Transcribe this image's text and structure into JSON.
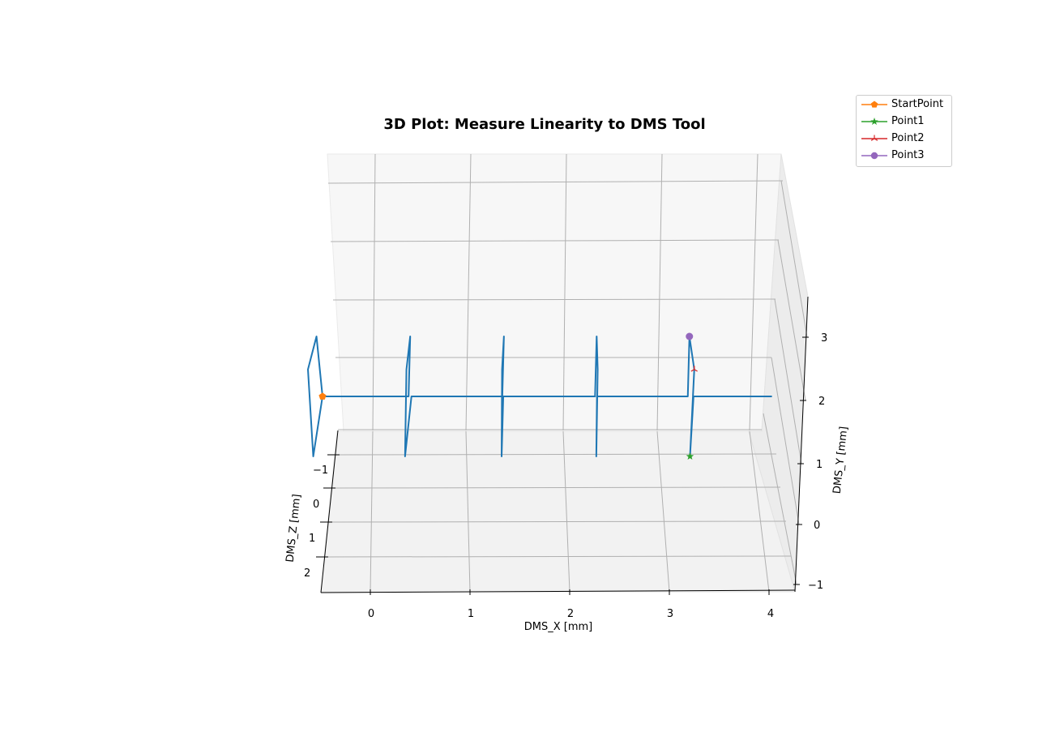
{
  "chart_data": {
    "type": "line",
    "projection": "3d",
    "title": "3D Plot: Measure Linearity to DMS Tool",
    "xlabel": "DMS_X [mm]",
    "ylabel": "DMS_Y [mm]",
    "zlabel": "DMS_Z [mm]",
    "xlim": [
      -0.5,
      4.25
    ],
    "ylim": [
      -1.2,
      3.3
    ],
    "zlim": [
      -1.5,
      2.5
    ],
    "x_ticks": [
      "0",
      "1",
      "2",
      "3",
      "4"
    ],
    "y_ticks": [
      "−1",
      "0",
      "1",
      "2",
      "3"
    ],
    "z_ticks": [
      "−1",
      "0",
      "1",
      "2"
    ],
    "grid": true,
    "legend_position": "upper-right-outside",
    "series": [
      {
        "color": "#1f77b4",
        "marker": "none",
        "points": [
          [
            -0.5,
            2.0,
            -1.0
          ],
          [
            -0.58,
            3.0,
            -1.0
          ],
          [
            -0.66,
            2.45,
            -1.0
          ],
          [
            -0.58,
            1.0,
            -1.0
          ],
          [
            -0.5,
            2.0,
            -1.0
          ],
          [
            0.4,
            2.0,
            -1.0
          ],
          [
            0.4,
            3.0,
            -1.0
          ],
          [
            0.37,
            2.45,
            -1.0
          ],
          [
            0.38,
            1.0,
            -1.0
          ],
          [
            0.43,
            2.0,
            -1.0
          ],
          [
            1.38,
            2.0,
            -1.0
          ],
          [
            1.38,
            3.0,
            -1.0
          ],
          [
            1.37,
            2.45,
            -1.0
          ],
          [
            1.39,
            1.0,
            -1.0
          ],
          [
            1.39,
            2.0,
            -1.0
          ],
          [
            2.35,
            2.0,
            -1.0
          ],
          [
            2.35,
            3.0,
            -1.0
          ],
          [
            2.37,
            2.45,
            -1.0
          ],
          [
            2.38,
            1.0,
            -1.0
          ],
          [
            2.37,
            2.0,
            -1.0
          ],
          [
            3.32,
            2.0,
            -1.0
          ],
          [
            3.32,
            3.0,
            -1.0
          ],
          [
            3.38,
            2.45,
            -1.0
          ],
          [
            3.36,
            1.0,
            -1.0
          ],
          [
            3.38,
            2.0,
            -1.0
          ],
          [
            4.2,
            2.0,
            -1.0
          ]
        ]
      },
      {
        "name": "StartPoint",
        "color": "#ff7f0e",
        "marker": "pentagon",
        "points": [
          [
            -0.5,
            2.0,
            -1.0
          ]
        ]
      },
      {
        "name": "Point1",
        "color": "#2ca02c",
        "marker": "star",
        "points": [
          [
            3.36,
            1.0,
            -1.0
          ]
        ]
      },
      {
        "name": "Point2",
        "color": "#d62728",
        "marker": "tri-star",
        "points": [
          [
            3.38,
            2.45,
            -1.0
          ]
        ]
      },
      {
        "name": "Point3",
        "color": "#9467bd",
        "marker": "circle",
        "points": [
          [
            3.32,
            3.0,
            -1.0
          ]
        ]
      }
    ]
  }
}
